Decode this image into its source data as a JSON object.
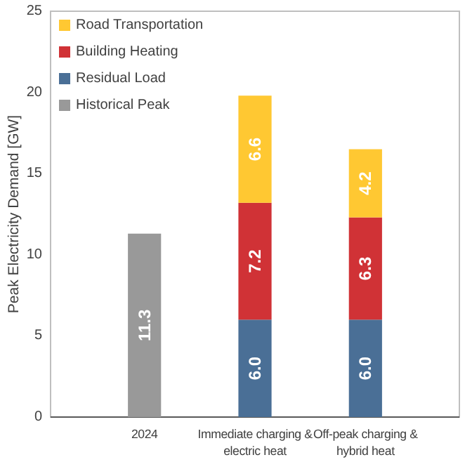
{
  "chart_data": {
    "type": "bar",
    "stacked": true,
    "ylabel": "Peak Electricity Demand [GW]",
    "categories": [
      "2024",
      "Immediate charging & electric heat",
      "Off-peak charging & hybrid heat"
    ],
    "series": [
      {
        "name": "Historical Peak",
        "color": "#999999",
        "values": [
          11.3,
          null,
          null
        ],
        "value_labels": [
          "11.3",
          null,
          null
        ]
      },
      {
        "name": "Residual Load",
        "color": "#4a6f96",
        "values": [
          null,
          6.0,
          6.0
        ],
        "value_labels": [
          null,
          "6.0",
          "6.0"
        ]
      },
      {
        "name": "Building Heating",
        "color": "#d03236",
        "values": [
          null,
          7.2,
          6.3
        ],
        "value_labels": [
          null,
          "7.2",
          "6.3"
        ]
      },
      {
        "name": "Road Transportation",
        "color": "#ffc832",
        "values": [
          null,
          6.6,
          4.2
        ],
        "value_labels": [
          null,
          "6.6",
          "4.2"
        ]
      }
    ],
    "ylim": [
      0,
      25
    ],
    "yticks": [
      0,
      5,
      10,
      15,
      20,
      25
    ],
    "grid": false,
    "legend": "top left"
  }
}
